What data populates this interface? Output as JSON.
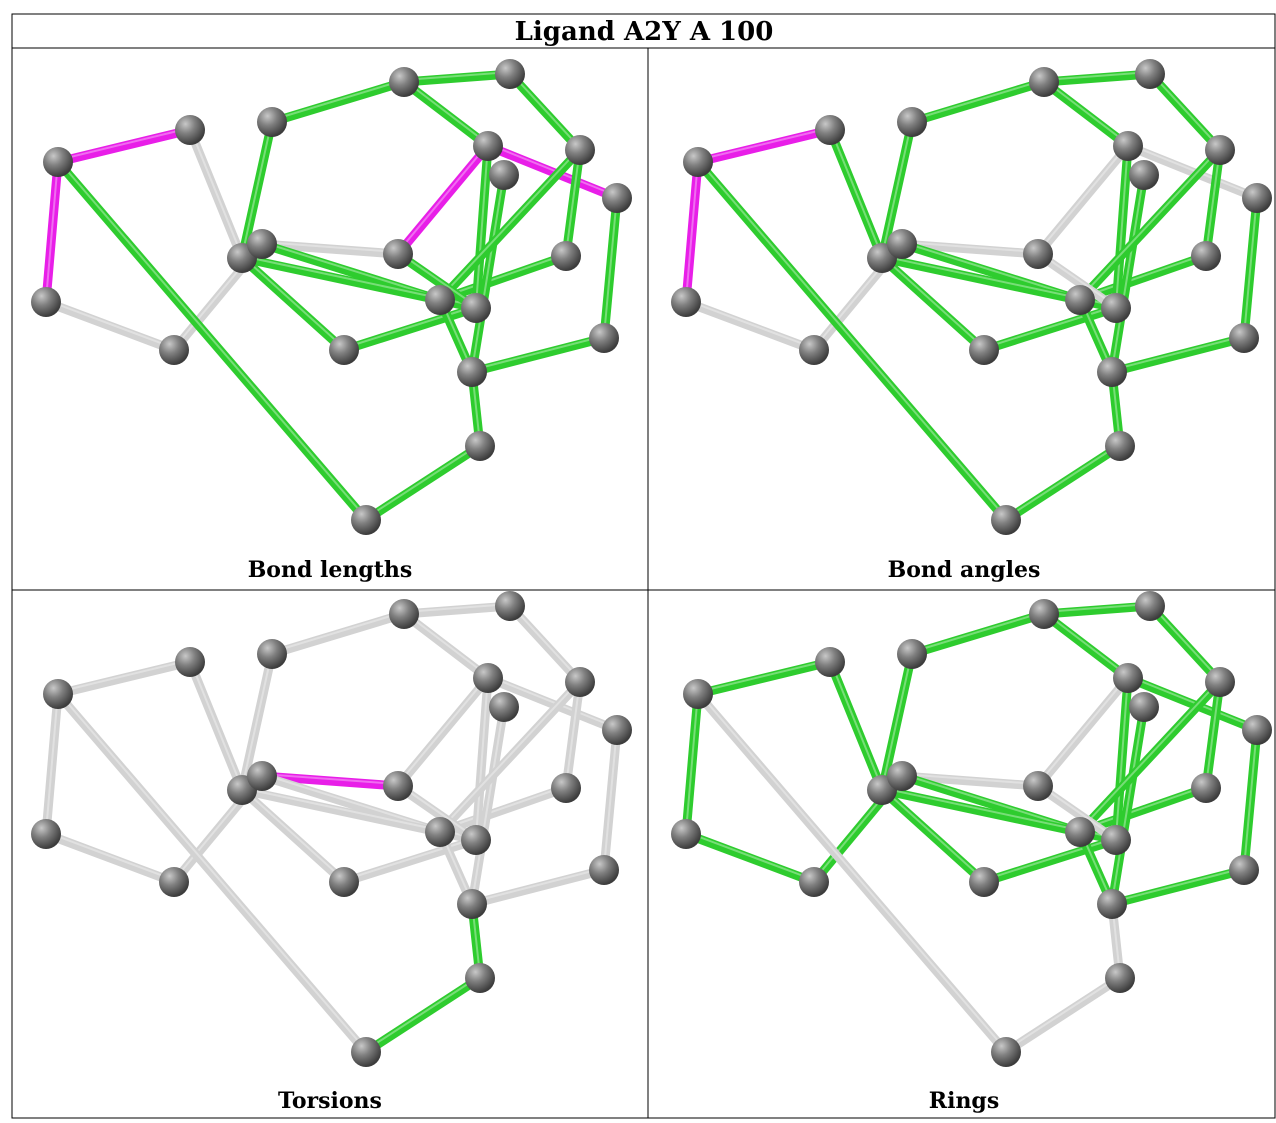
{
  "title": "Ligand A2Y A 100",
  "panels": [
    {
      "caption": "Bond lengths"
    },
    {
      "caption": "Bond angles"
    },
    {
      "caption": "Torsions"
    },
    {
      "caption": "Rings"
    }
  ]
}
